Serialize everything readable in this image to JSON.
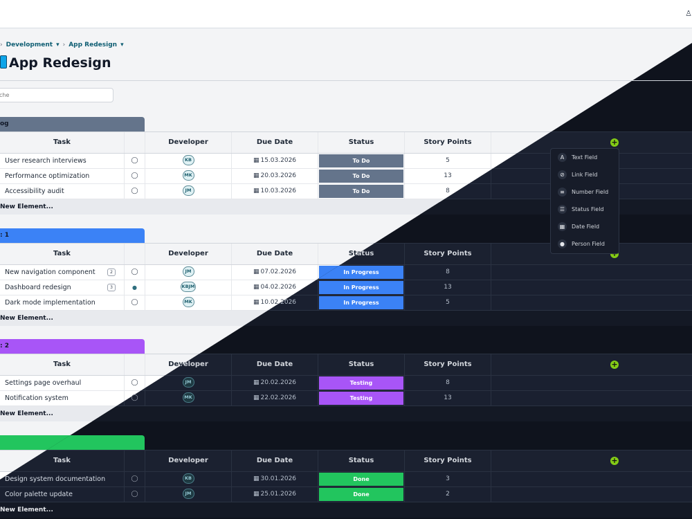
{
  "topbar": {
    "icon": "user-icon"
  },
  "breadcrumb": {
    "items": [
      "Development",
      "App Redesign"
    ],
    "chevron": "▾",
    "separator": "›"
  },
  "page": {
    "title": "App Redesign",
    "icon": "phone-icon"
  },
  "search": {
    "placeholder": "che"
  },
  "columns": {
    "task": "Task",
    "developer": "Developer",
    "due": "Due Date",
    "status": "Status",
    "points": "Story Points"
  },
  "new_element_label": "New Element...",
  "groups": [
    {
      "name": "og",
      "color": "#64748b",
      "rows": [
        {
          "task": "User research interviews",
          "dev": "KB",
          "due": "15.03.2026",
          "status": "To Do",
          "points": "5"
        },
        {
          "task": "Performance optimization",
          "dev": "MK",
          "due": "20.03.2026",
          "status": "To Do",
          "points": "13"
        },
        {
          "task": "Accessibility audit",
          "dev": "JM",
          "due": "10.03.2026",
          "status": "To Do",
          "points": "8"
        }
      ]
    },
    {
      "name": ": 1",
      "color": "#3b82f6",
      "rows": [
        {
          "task": "New navigation component",
          "badge": "2",
          "dev": "JM",
          "due": "07.02.2026",
          "status": "In Progress",
          "points": "8"
        },
        {
          "task": "Dashboard redesign",
          "badge": "3",
          "dev": "KBJM",
          "due": "04.02.2026",
          "status": "In Progress",
          "points": "13"
        },
        {
          "task": "Dark mode implementation",
          "dev": "MK",
          "due": "10.02.2026",
          "status": "In Progress",
          "points": "5"
        }
      ]
    },
    {
      "name": ": 2",
      "color": "#a855f7",
      "rows": [
        {
          "task": "Settings page overhaul",
          "dev": "JM",
          "due": "20.02.2026",
          "status": "Testing",
          "points": "8"
        },
        {
          "task": "Notification system",
          "dev": "MK",
          "due": "22.02.2026",
          "status": "Testing",
          "points": "13"
        }
      ]
    },
    {
      "name": "",
      "color": "#22c55e",
      "rows": [
        {
          "task": "Design system documentation",
          "dev": "KB",
          "due": "30.01.2026",
          "status": "Done",
          "points": "3"
        },
        {
          "task": "Color palette update",
          "dev": "JM",
          "due": "25.01.2026",
          "status": "Done",
          "points": "2"
        }
      ]
    }
  ],
  "status_colors": {
    "To Do": "#64748b",
    "In Progress": "#3b82f6",
    "Testing": "#a855f7",
    "Done": "#22c55e"
  },
  "field_menu": [
    {
      "label": "Text Field",
      "icon": "text-icon"
    },
    {
      "label": "Link Field",
      "icon": "link-icon"
    },
    {
      "label": "Number Field",
      "icon": "number-list-icon"
    },
    {
      "label": "Status Field",
      "icon": "list-icon"
    },
    {
      "label": "Date Field",
      "icon": "calendar-icon"
    },
    {
      "label": "Person Field",
      "icon": "person-icon"
    }
  ]
}
